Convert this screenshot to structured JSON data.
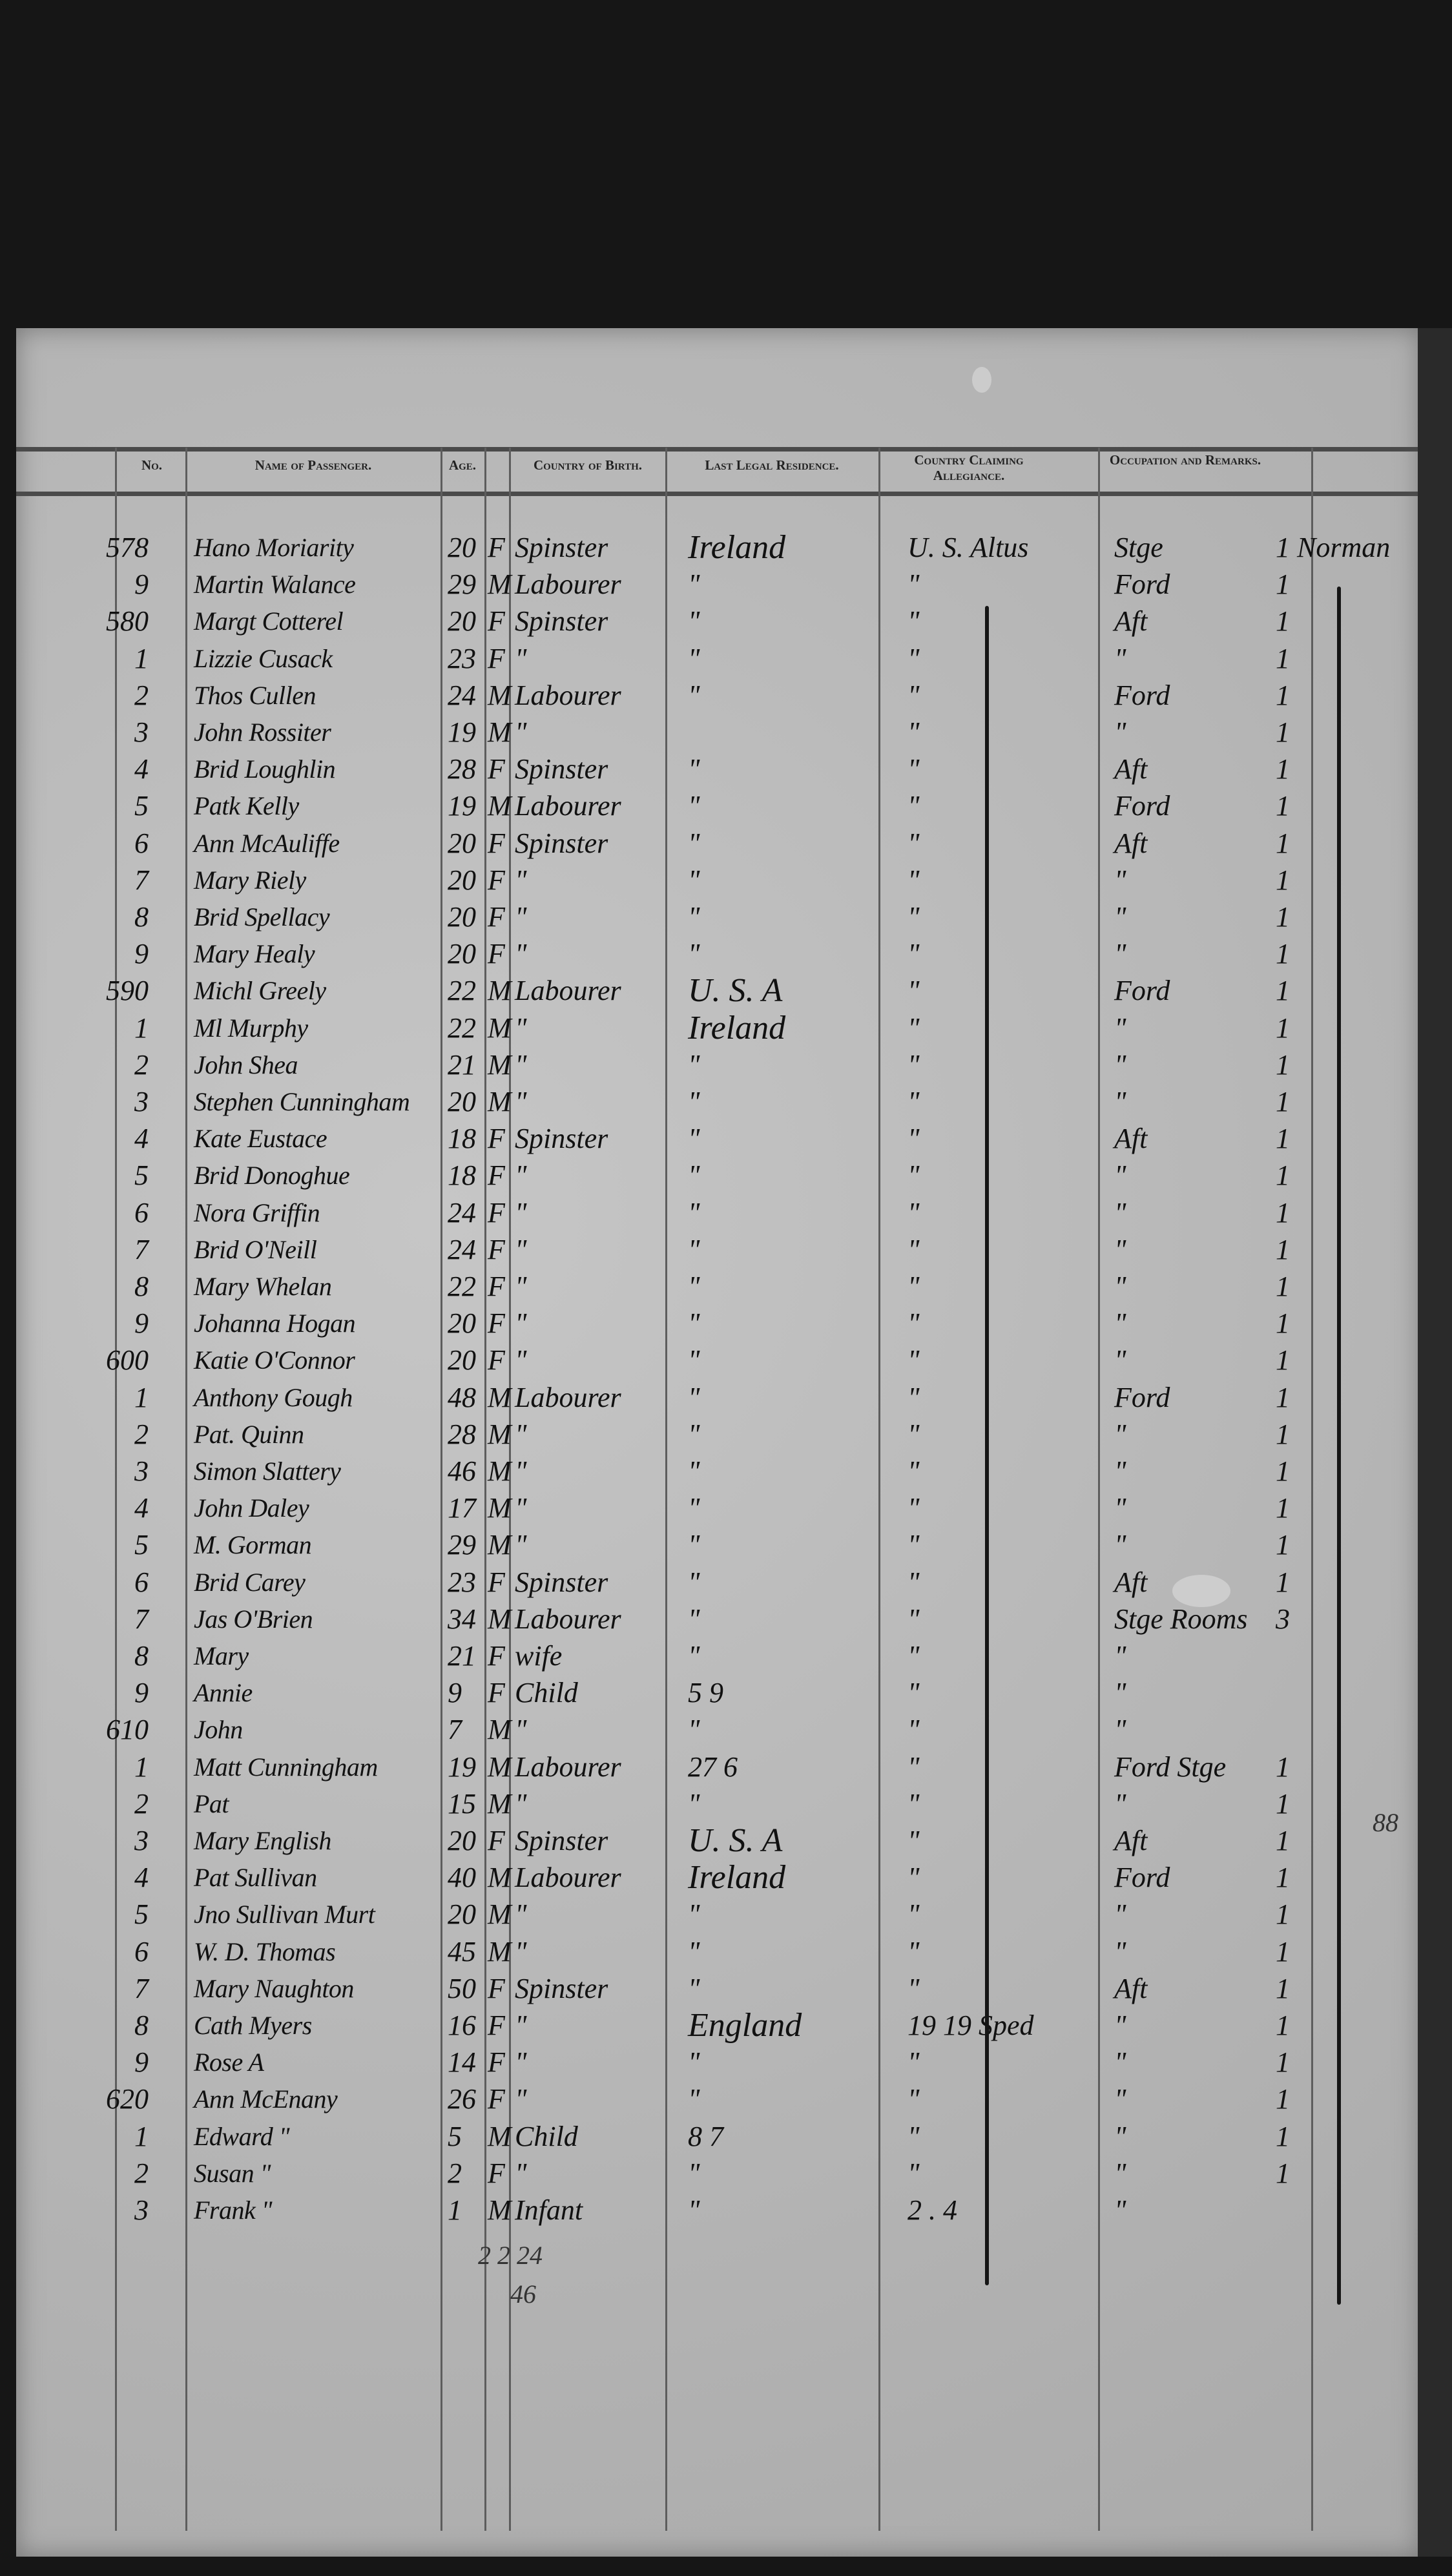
{
  "headers": {
    "no": "No.",
    "name": "Name of Passenger.",
    "age": "Age.",
    "country_of_birth": "Country of Birth.",
    "last_residence": "Last Legal Residence.",
    "country_allegiance": "Country Claiming Allegiance.",
    "occupation": "Occupation and Remarks."
  },
  "rows": [
    {
      "no": "578",
      "name": "Hano Moriarity",
      "age": "20",
      "sex": "F",
      "occ": "Spinster",
      "res": "Ireland",
      "claim": "U. S. Altus",
      "rem": "Stge",
      "last": "1 Norman"
    },
    {
      "no": "9",
      "name": "Martin Walance",
      "age": "29",
      "sex": "M",
      "occ": "Labourer",
      "res": "\"",
      "claim": "\"",
      "rem": "Ford",
      "last": "1"
    },
    {
      "no": "580",
      "name": "Margt Cotterel",
      "age": "20",
      "sex": "F",
      "occ": "Spinster",
      "res": "\"",
      "claim": "\"",
      "rem": "Aft",
      "last": "1"
    },
    {
      "no": "1",
      "name": "Lizzie Cusack",
      "age": "23",
      "sex": "F",
      "occ": "\"",
      "res": "\"",
      "claim": "\"",
      "rem": "\"",
      "last": "1"
    },
    {
      "no": "2",
      "name": "Thos Cullen",
      "age": "24",
      "sex": "M",
      "occ": "Labourer",
      "res": "\"",
      "claim": "\"",
      "rem": "Ford",
      "last": "1"
    },
    {
      "no": "3",
      "name": "John Rossiter",
      "age": "19",
      "sex": "M",
      "occ": "\"",
      "res": "",
      "claim": "\"",
      "rem": "\"",
      "last": "1"
    },
    {
      "no": "4",
      "name": "Brid Loughlin",
      "age": "28",
      "sex": "F",
      "occ": "Spinster",
      "res": "\"",
      "claim": "\"",
      "rem": "Aft",
      "last": "1"
    },
    {
      "no": "5",
      "name": "Patk Kelly",
      "age": "19",
      "sex": "M",
      "occ": "Labourer",
      "res": "\"",
      "claim": "\"",
      "rem": "Ford",
      "last": "1"
    },
    {
      "no": "6",
      "name": "Ann McAuliffe",
      "age": "20",
      "sex": "F",
      "occ": "Spinster",
      "res": "\"",
      "claim": "\"",
      "rem": "Aft",
      "last": "1"
    },
    {
      "no": "7",
      "name": "Mary Riely",
      "age": "20",
      "sex": "F",
      "occ": "\"",
      "res": "\"",
      "claim": "\"",
      "rem": "\"",
      "last": "1"
    },
    {
      "no": "8",
      "name": "Brid Spellacy",
      "age": "20",
      "sex": "F",
      "occ": "\"",
      "res": "\"",
      "claim": "\"",
      "rem": "\"",
      "last": "1"
    },
    {
      "no": "9",
      "name": "Mary Healy",
      "age": "20",
      "sex": "F",
      "occ": "\"",
      "res": "\"",
      "claim": "\"",
      "rem": "\"",
      "last": "1"
    },
    {
      "no": "590",
      "name": "Michl Greely",
      "age": "22",
      "sex": "M",
      "occ": "Labourer",
      "res": "U. S. A",
      "claim": "\"",
      "rem": "Ford",
      "last": "1"
    },
    {
      "no": "1",
      "name": "Ml Murphy",
      "age": "22",
      "sex": "M",
      "occ": "\"",
      "res": "Ireland",
      "claim": "\"",
      "rem": "\"",
      "last": "1"
    },
    {
      "no": "2",
      "name": "John Shea",
      "age": "21",
      "sex": "M",
      "occ": "\"",
      "res": "\"",
      "claim": "\"",
      "rem": "\"",
      "last": "1"
    },
    {
      "no": "3",
      "name": "Stephen Cunningham",
      "age": "20",
      "sex": "M",
      "occ": "\"",
      "res": "\"",
      "claim": "\"",
      "rem": "\"",
      "last": "1"
    },
    {
      "no": "4",
      "name": "Kate Eustace",
      "age": "18",
      "sex": "F",
      "occ": "Spinster",
      "res": "\"",
      "claim": "\"",
      "rem": "Aft",
      "last": "1"
    },
    {
      "no": "5",
      "name": "Brid Donoghue",
      "age": "18",
      "sex": "F",
      "occ": "\"",
      "res": "\"",
      "claim": "\"",
      "rem": "\"",
      "last": "1"
    },
    {
      "no": "6",
      "name": "Nora Griffin",
      "age": "24",
      "sex": "F",
      "occ": "\"",
      "res": "\"",
      "claim": "\"",
      "rem": "\"",
      "last": "1"
    },
    {
      "no": "7",
      "name": "Brid O'Neill",
      "age": "24",
      "sex": "F",
      "occ": "\"",
      "res": "\"",
      "claim": "\"",
      "rem": "\"",
      "last": "1"
    },
    {
      "no": "8",
      "name": "Mary Whelan",
      "age": "22",
      "sex": "F",
      "occ": "\"",
      "res": "\"",
      "claim": "\"",
      "rem": "\"",
      "last": "1"
    },
    {
      "no": "9",
      "name": "Johanna Hogan",
      "age": "20",
      "sex": "F",
      "occ": "\"",
      "res": "\"",
      "claim": "\"",
      "rem": "\"",
      "last": "1"
    },
    {
      "no": "600",
      "name": "Katie O'Connor",
      "age": "20",
      "sex": "F",
      "occ": "\"",
      "res": "\"",
      "claim": "\"",
      "rem": "\"",
      "last": "1"
    },
    {
      "no": "1",
      "name": "Anthony Gough",
      "age": "48",
      "sex": "M",
      "occ": "Labourer",
      "res": "\"",
      "claim": "\"",
      "rem": "Ford",
      "last": "1"
    },
    {
      "no": "2",
      "name": "Pat. Quinn",
      "age": "28",
      "sex": "M",
      "occ": "\"",
      "res": "\"",
      "claim": "\"",
      "rem": "\"",
      "last": "1"
    },
    {
      "no": "3",
      "name": "Simon Slattery",
      "age": "46",
      "sex": "M",
      "occ": "\"",
      "res": "\"",
      "claim": "\"",
      "rem": "\"",
      "last": "1"
    },
    {
      "no": "4",
      "name": "John Daley",
      "age": "17",
      "sex": "M",
      "occ": "\"",
      "res": "\"",
      "claim": "\"",
      "rem": "\"",
      "last": "1"
    },
    {
      "no": "5",
      "name": "M. Gorman",
      "age": "29",
      "sex": "M",
      "occ": "\"",
      "res": "\"",
      "claim": "\"",
      "rem": "\"",
      "last": "1"
    },
    {
      "no": "6",
      "name": "Brid Carey",
      "age": "23",
      "sex": "F",
      "occ": "Spinster",
      "res": "\"",
      "claim": "\"",
      "rem": "Aft",
      "last": "1"
    },
    {
      "no": "7",
      "name": "Jas O'Brien",
      "age": "34",
      "sex": "M",
      "occ": "Labourer",
      "res": "\"",
      "claim": "\"",
      "rem": "Stge Rooms",
      "last": "3"
    },
    {
      "no": "8",
      "name": "Mary",
      "age": "21",
      "sex": "F",
      "occ": "wife",
      "res": "\"",
      "claim": "\"",
      "rem": "\"",
      "last": ""
    },
    {
      "no": "9",
      "name": "Annie",
      "age": "9",
      "sex": "F",
      "occ": "Child",
      "res": "5  9",
      "claim": "\"",
      "rem": "\"",
      "last": ""
    },
    {
      "no": "610",
      "name": "John",
      "age": "7",
      "sex": "M",
      "occ": "\"",
      "res": "\"",
      "claim": "\"",
      "rem": "\"",
      "last": ""
    },
    {
      "no": "1",
      "name": "Matt Cunningham",
      "age": "19",
      "sex": "M",
      "occ": "Labourer",
      "res": "27  6",
      "claim": "\"",
      "rem": "Ford Stge",
      "last": "1"
    },
    {
      "no": "2",
      "name": "Pat",
      "age": "15",
      "sex": "M",
      "occ": "\"",
      "res": "\"",
      "claim": "\"",
      "rem": "\"",
      "last": "1"
    },
    {
      "no": "3",
      "name": "Mary English",
      "age": "20",
      "sex": "F",
      "occ": "Spinster",
      "res": "U. S. A",
      "claim": "\"",
      "rem": "Aft",
      "last": "1"
    },
    {
      "no": "4",
      "name": "Pat Sullivan",
      "age": "40",
      "sex": "M",
      "occ": "Labourer",
      "res": "Ireland",
      "claim": "\"",
      "rem": "Ford",
      "last": "1"
    },
    {
      "no": "5",
      "name": "Jno Sullivan Murt",
      "age": "20",
      "sex": "M",
      "occ": "\"",
      "res": "\"",
      "claim": "\"",
      "rem": "\"",
      "last": "1"
    },
    {
      "no": "6",
      "name": "W. D. Thomas",
      "age": "45",
      "sex": "M",
      "occ": "\"",
      "res": "\"",
      "claim": "\"",
      "rem": "\"",
      "last": "1"
    },
    {
      "no": "7",
      "name": "Mary Naughton",
      "age": "50",
      "sex": "F",
      "occ": "Spinster",
      "res": "\"",
      "claim": "\"",
      "rem": "Aft",
      "last": "1"
    },
    {
      "no": "8",
      "name": "Cath Myers",
      "age": "16",
      "sex": "F",
      "occ": "\"",
      "res": "England",
      "claim": "19   19  Sped",
      "rem": "\"",
      "last": "1"
    },
    {
      "no": "9",
      "name": "Rose A",
      "age": "14",
      "sex": "F",
      "occ": "\"",
      "res": "\"",
      "claim": "\"",
      "rem": "\"",
      "last": "1"
    },
    {
      "no": "620",
      "name": "Ann McEnany",
      "age": "26",
      "sex": "F",
      "occ": "\"",
      "res": "\"",
      "claim": "\"",
      "rem": "\"",
      "last": "1"
    },
    {
      "no": "1",
      "name": "Edward \"",
      "age": "5",
      "sex": "M",
      "occ": "Child",
      "res": "8  7",
      "claim": "\"",
      "rem": "\"",
      "last": "1"
    },
    {
      "no": "2",
      "name": "Susan \"",
      "age": "2",
      "sex": "F",
      "occ": "\"",
      "res": "\"",
      "claim": "\"",
      "rem": "\"",
      "last": "1"
    },
    {
      "no": "3",
      "name": "Frank \"",
      "age": "1",
      "sex": "M",
      "occ": "Infant",
      "res": "\"",
      "claim": "2 .   4",
      "rem": "\"",
      "last": ""
    }
  ],
  "tallies": {
    "age_subtotal": "2 2 24",
    "age_total": "46",
    "margin_note": "88"
  }
}
